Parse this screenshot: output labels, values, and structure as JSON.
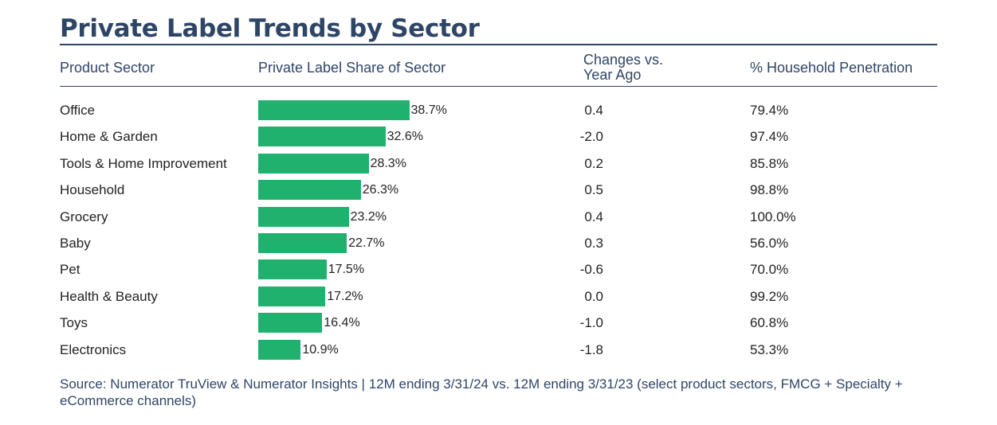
{
  "title": "Private Label Trends by Sector",
  "headers": {
    "sector": "Product Sector",
    "share": "Private Label Share of Sector",
    "change": "Changes vs. Year Ago",
    "penetration": "% Household Penetration"
  },
  "colors": {
    "text": "#2f4566",
    "bar": "#21b16f",
    "rule": "#2f4566"
  },
  "chart_data": {
    "type": "bar",
    "orientation": "horizontal",
    "categories": [
      "Office",
      "Home & Garden",
      "Tools & Home Improvement",
      "Household",
      "Grocery",
      "Baby",
      "Pet",
      "Health & Beauty",
      "Toys",
      "Electronics"
    ],
    "values": [
      38.7,
      32.6,
      28.3,
      26.3,
      23.2,
      22.7,
      17.5,
      17.2,
      16.4,
      10.9
    ],
    "value_labels": [
      "38.7%",
      "32.6%",
      "28.3%",
      "26.3%",
      "23.2%",
      "22.7%",
      "17.5%",
      "17.2%",
      "16.4%",
      "10.9%"
    ],
    "changes": [
      "0.4",
      "-2.0",
      "0.2",
      "0.5",
      "0.4",
      "0.3",
      "-0.6",
      "0.0",
      "-1.0",
      "-1.8"
    ],
    "penetration": [
      "79.4%",
      "97.4%",
      "85.8%",
      "98.8%",
      "100.0%",
      "56.0%",
      "70.0%",
      "99.2%",
      "60.8%",
      "53.3%"
    ],
    "xlim": [
      0,
      100
    ],
    "grid": false
  },
  "source": "Source: Numerator TruView & Numerator Insights | 12M ending 3/31/24 vs. 12M ending 3/31/23 (select product sectors, FMCG + Specialty + eCommerce channels)"
}
